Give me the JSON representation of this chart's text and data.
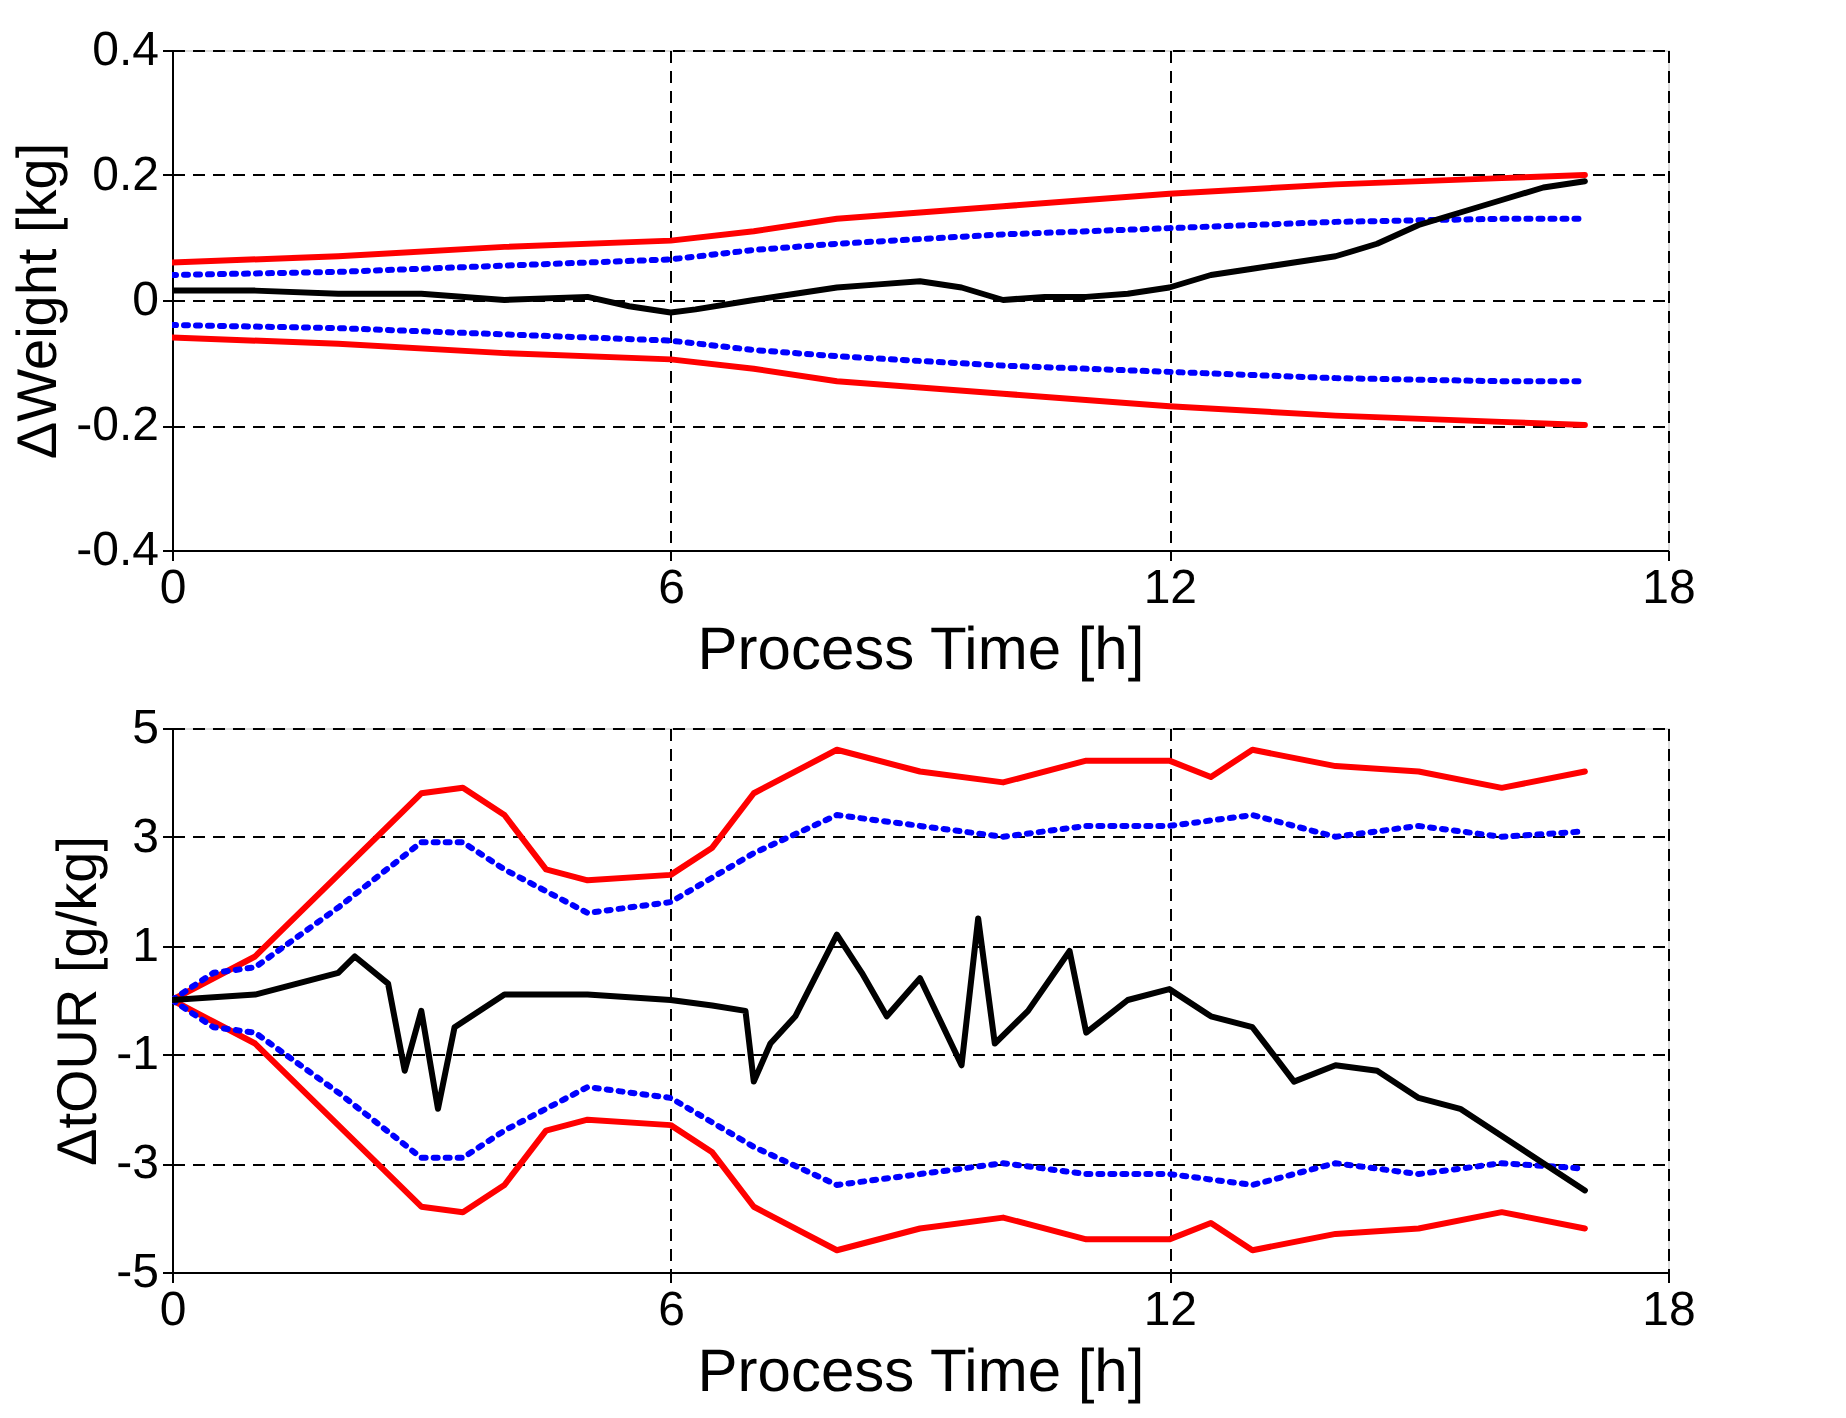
{
  "chart_data": [
    {
      "type": "line",
      "xlabel": "Process Time [h]",
      "ylabel": "ΔWeight [kg]",
      "xlim": [
        0,
        18
      ],
      "xticks": [
        0,
        6,
        12,
        18
      ],
      "ylim": [
        -0.4,
        0.4
      ],
      "yticks": [
        -0.4,
        -0.2,
        0,
        0.2,
        0.4
      ],
      "grid": true,
      "series": [
        {
          "color": "#ff0000",
          "line_style": "solid",
          "x": [
            0,
            2,
            4,
            6,
            7,
            8,
            10,
            12,
            14,
            16,
            17
          ],
          "values": [
            0.06,
            0.07,
            0.085,
            0.095,
            0.11,
            0.13,
            0.15,
            0.17,
            0.185,
            0.195,
            0.2
          ]
        },
        {
          "color": "#ff0000",
          "line_style": "solid",
          "x": [
            0,
            2,
            4,
            6,
            7,
            8,
            10,
            12,
            14,
            16,
            17
          ],
          "values": [
            -0.06,
            -0.07,
            -0.085,
            -0.095,
            -0.11,
            -0.13,
            -0.15,
            -0.17,
            -0.185,
            -0.195,
            -0.2
          ]
        },
        {
          "color": "#0000ff",
          "line_style": "dotted",
          "x": [
            0,
            2,
            4,
            6,
            7,
            8,
            10,
            12,
            14,
            16,
            17
          ],
          "values": [
            0.04,
            0.045,
            0.055,
            0.065,
            0.08,
            0.09,
            0.105,
            0.115,
            0.125,
            0.13,
            0.13
          ]
        },
        {
          "color": "#0000ff",
          "line_style": "dotted",
          "x": [
            0,
            2,
            4,
            6,
            7,
            8,
            10,
            12,
            14,
            16,
            17
          ],
          "values": [
            -0.04,
            -0.045,
            -0.055,
            -0.065,
            -0.08,
            -0.09,
            -0.105,
            -0.115,
            -0.125,
            -0.13,
            -0.13
          ]
        },
        {
          "color": "#000000",
          "line_style": "solid",
          "x": [
            0,
            1,
            2,
            3,
            4,
            5,
            5.5,
            6,
            6.3,
            7,
            7.5,
            8,
            8.5,
            9,
            9.5,
            10,
            10.5,
            11,
            11.5,
            12,
            12.5,
            13,
            13.5,
            14,
            14.5,
            15,
            15.5,
            16,
            16.5,
            17
          ],
          "values": [
            0.015,
            0.015,
            0.01,
            0.01,
            0.0,
            0.005,
            -0.01,
            -0.02,
            -0.015,
            0.0,
            0.01,
            0.02,
            0.025,
            0.03,
            0.02,
            0.0,
            0.005,
            0.005,
            0.01,
            0.02,
            0.04,
            0.05,
            0.06,
            0.07,
            0.09,
            0.12,
            0.14,
            0.16,
            0.18,
            0.19
          ]
        }
      ]
    },
    {
      "type": "line",
      "xlabel": "Process Time [h]",
      "ylabel": "ΔtOUR [g/kg]",
      "xlim": [
        0,
        18
      ],
      "xticks": [
        0,
        6,
        12,
        18
      ],
      "ylim": [
        -5,
        5
      ],
      "yticks": [
        -5,
        -3,
        -1,
        1,
        3,
        5
      ],
      "grid": true,
      "series": [
        {
          "color": "#ff0000",
          "line_style": "solid",
          "x": [
            0,
            0.5,
            1,
            2,
            3,
            3.5,
            4,
            4.5,
            5,
            6,
            6.5,
            7,
            8,
            9,
            10,
            11,
            12,
            12.5,
            13,
            14,
            15,
            16,
            17
          ],
          "values": [
            0,
            0.4,
            0.8,
            2.3,
            3.8,
            3.9,
            3.4,
            2.4,
            2.2,
            2.3,
            2.8,
            3.8,
            4.6,
            4.2,
            4.0,
            4.4,
            4.4,
            4.1,
            4.6,
            4.3,
            4.2,
            3.9,
            4.2
          ]
        },
        {
          "color": "#ff0000",
          "line_style": "solid",
          "x": [
            0,
            0.5,
            1,
            2,
            3,
            3.5,
            4,
            4.5,
            5,
            6,
            6.5,
            7,
            8,
            9,
            10,
            11,
            12,
            12.5,
            13,
            14,
            15,
            16,
            17
          ],
          "values": [
            0,
            -0.4,
            -0.8,
            -2.3,
            -3.8,
            -3.9,
            -3.4,
            -2.4,
            -2.2,
            -2.3,
            -2.8,
            -3.8,
            -4.6,
            -4.2,
            -4.0,
            -4.4,
            -4.4,
            -4.1,
            -4.6,
            -4.3,
            -4.2,
            -3.9,
            -4.2
          ]
        },
        {
          "color": "#0000ff",
          "line_style": "dotted",
          "x": [
            0,
            0.5,
            1,
            2,
            3,
            3.5,
            4,
            5,
            6,
            7,
            8,
            9,
            10,
            11,
            12,
            13,
            14,
            15,
            16,
            17
          ],
          "values": [
            0,
            0.5,
            0.6,
            1.7,
            2.9,
            2.9,
            2.4,
            1.6,
            1.8,
            2.7,
            3.4,
            3.2,
            3.0,
            3.2,
            3.2,
            3.4,
            3.0,
            3.2,
            3.0,
            3.1
          ]
        },
        {
          "color": "#0000ff",
          "line_style": "dotted",
          "x": [
            0,
            0.5,
            1,
            2,
            3,
            3.5,
            4,
            5,
            6,
            7,
            8,
            9,
            10,
            11,
            12,
            13,
            14,
            15,
            16,
            17
          ],
          "values": [
            0,
            -0.5,
            -0.6,
            -1.7,
            -2.9,
            -2.9,
            -2.4,
            -1.6,
            -1.8,
            -2.7,
            -3.4,
            -3.2,
            -3.0,
            -3.2,
            -3.2,
            -3.4,
            -3.0,
            -3.2,
            -3.0,
            -3.1
          ]
        },
        {
          "color": "#000000",
          "line_style": "solid",
          "x": [
            0,
            1,
            2,
            2.2,
            2.6,
            2.8,
            3,
            3.2,
            3.4,
            4,
            5,
            6,
            6.5,
            6.9,
            7,
            7.2,
            7.5,
            8,
            8.3,
            8.6,
            9,
            9.5,
            9.7,
            9.9,
            10.3,
            10.8,
            11,
            11.5,
            12,
            12.5,
            13,
            13.5,
            14,
            14.5,
            15,
            15.5,
            16,
            16.5,
            17
          ],
          "values": [
            0,
            0.1,
            0.5,
            0.8,
            0.3,
            -1.3,
            -0.2,
            -2.0,
            -0.5,
            0.1,
            0.1,
            0,
            -0.1,
            -0.2,
            -1.5,
            -0.8,
            -0.3,
            1.2,
            0.5,
            -0.3,
            0.4,
            -1.2,
            1.5,
            -0.8,
            -0.2,
            0.9,
            -0.6,
            0,
            0.2,
            -0.3,
            -0.5,
            -1.5,
            -1.2,
            -1.3,
            -1.8,
            -2.0,
            -2.5,
            -3.0,
            -3.5
          ]
        }
      ]
    }
  ]
}
